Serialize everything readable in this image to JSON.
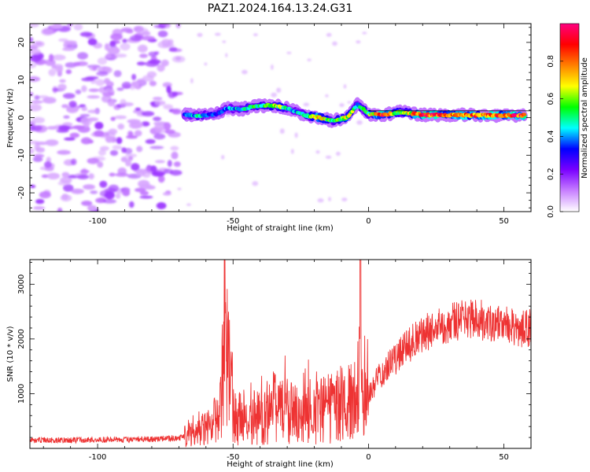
{
  "figure_title": "PAZ1.2024.164.13.24.G31",
  "chart_data": [
    {
      "type": "heatmap",
      "title": "PAZ1.2024.164.13.24.G31",
      "xlabel": "Height of straight line (km)",
      "ylabel": "Frequency (Hz)",
      "xlim": [
        -125,
        60
      ],
      "ylim": [
        -25,
        25
      ],
      "xticks": [
        -100,
        -50,
        0,
        50
      ],
      "yticks": [
        -20,
        -10,
        0,
        10,
        20
      ],
      "colorbar": {
        "label": "Normalized spectral amplitude",
        "range": [
          0,
          1
        ],
        "ticks": [
          0.0,
          0.2,
          0.4,
          0.6,
          0.8
        ],
        "colormap": [
          "#ffffff",
          "#c880ff",
          "#7a00ff",
          "#0000ff",
          "#00ffff",
          "#00ff00",
          "#ffff00",
          "#ff8000",
          "#ff0000",
          "#ff0080"
        ]
      },
      "noise_region_x": [
        -125,
        -70
      ],
      "ridge": [
        {
          "x": -68,
          "f": 0.8,
          "amp": 0.35
        },
        {
          "x": -62,
          "f": 0.5,
          "amp": 0.45
        },
        {
          "x": -56,
          "f": 1.0,
          "amp": 0.3
        },
        {
          "x": -52,
          "f": 2.5,
          "amp": 0.4
        },
        {
          "x": -47,
          "f": 2.2,
          "amp": 0.45
        },
        {
          "x": -42,
          "f": 3.0,
          "amp": 0.5
        },
        {
          "x": -37,
          "f": 3.2,
          "amp": 0.55
        },
        {
          "x": -33,
          "f": 3.0,
          "amp": 0.6
        },
        {
          "x": -28,
          "f": 2.0,
          "amp": 0.4
        },
        {
          "x": -23,
          "f": 0.5,
          "amp": 0.5
        },
        {
          "x": -18,
          "f": 0.0,
          "amp": 0.75
        },
        {
          "x": -13,
          "f": -0.8,
          "amp": 0.45
        },
        {
          "x": -8,
          "f": 0.0,
          "amp": 0.7
        },
        {
          "x": -4,
          "f": 3.5,
          "amp": 0.45
        },
        {
          "x": 0,
          "f": 1.0,
          "amp": 0.55
        },
        {
          "x": 5,
          "f": 0.7,
          "amp": 0.85
        },
        {
          "x": 12,
          "f": 1.5,
          "amp": 0.5
        },
        {
          "x": 20,
          "f": 0.7,
          "amp": 0.9
        },
        {
          "x": 30,
          "f": 0.7,
          "amp": 0.75
        },
        {
          "x": 40,
          "f": 0.6,
          "amp": 0.8
        },
        {
          "x": 50,
          "f": 0.6,
          "amp": 0.85
        },
        {
          "x": 58,
          "f": 0.6,
          "amp": 0.85
        }
      ]
    },
    {
      "type": "line",
      "xlabel": "Height of straight line (km)",
      "ylabel": "SNR (10 * v/v)",
      "xlim": [
        -125,
        60
      ],
      "ylim": [
        0,
        3450
      ],
      "xticks": [
        -100,
        -50,
        0,
        50
      ],
      "yticks": [
        1000,
        2000,
        3000
      ],
      "series": [
        {
          "color": "#ee3333",
          "x": [
            -125,
            -110,
            -100,
            -90,
            -80,
            -70,
            -65,
            -60,
            -55,
            -53,
            -50,
            -45,
            -40,
            -35,
            -30,
            -25,
            -20,
            -15,
            -10,
            -6,
            -3.5,
            -3,
            -2.5,
            -1,
            0,
            5,
            10,
            15,
            20,
            25,
            30,
            35,
            40,
            45,
            50,
            55,
            60
          ],
          "y": [
            150,
            150,
            160,
            160,
            170,
            190,
            260,
            370,
            520,
            2150,
            580,
            500,
            610,
            730,
            670,
            620,
            690,
            720,
            800,
            820,
            900,
            3380,
            900,
            850,
            1000,
            1350,
            1650,
            1900,
            2100,
            2200,
            2300,
            2350,
            2400,
            2250,
            2250,
            2200,
            2200
          ]
        }
      ]
    }
  ]
}
